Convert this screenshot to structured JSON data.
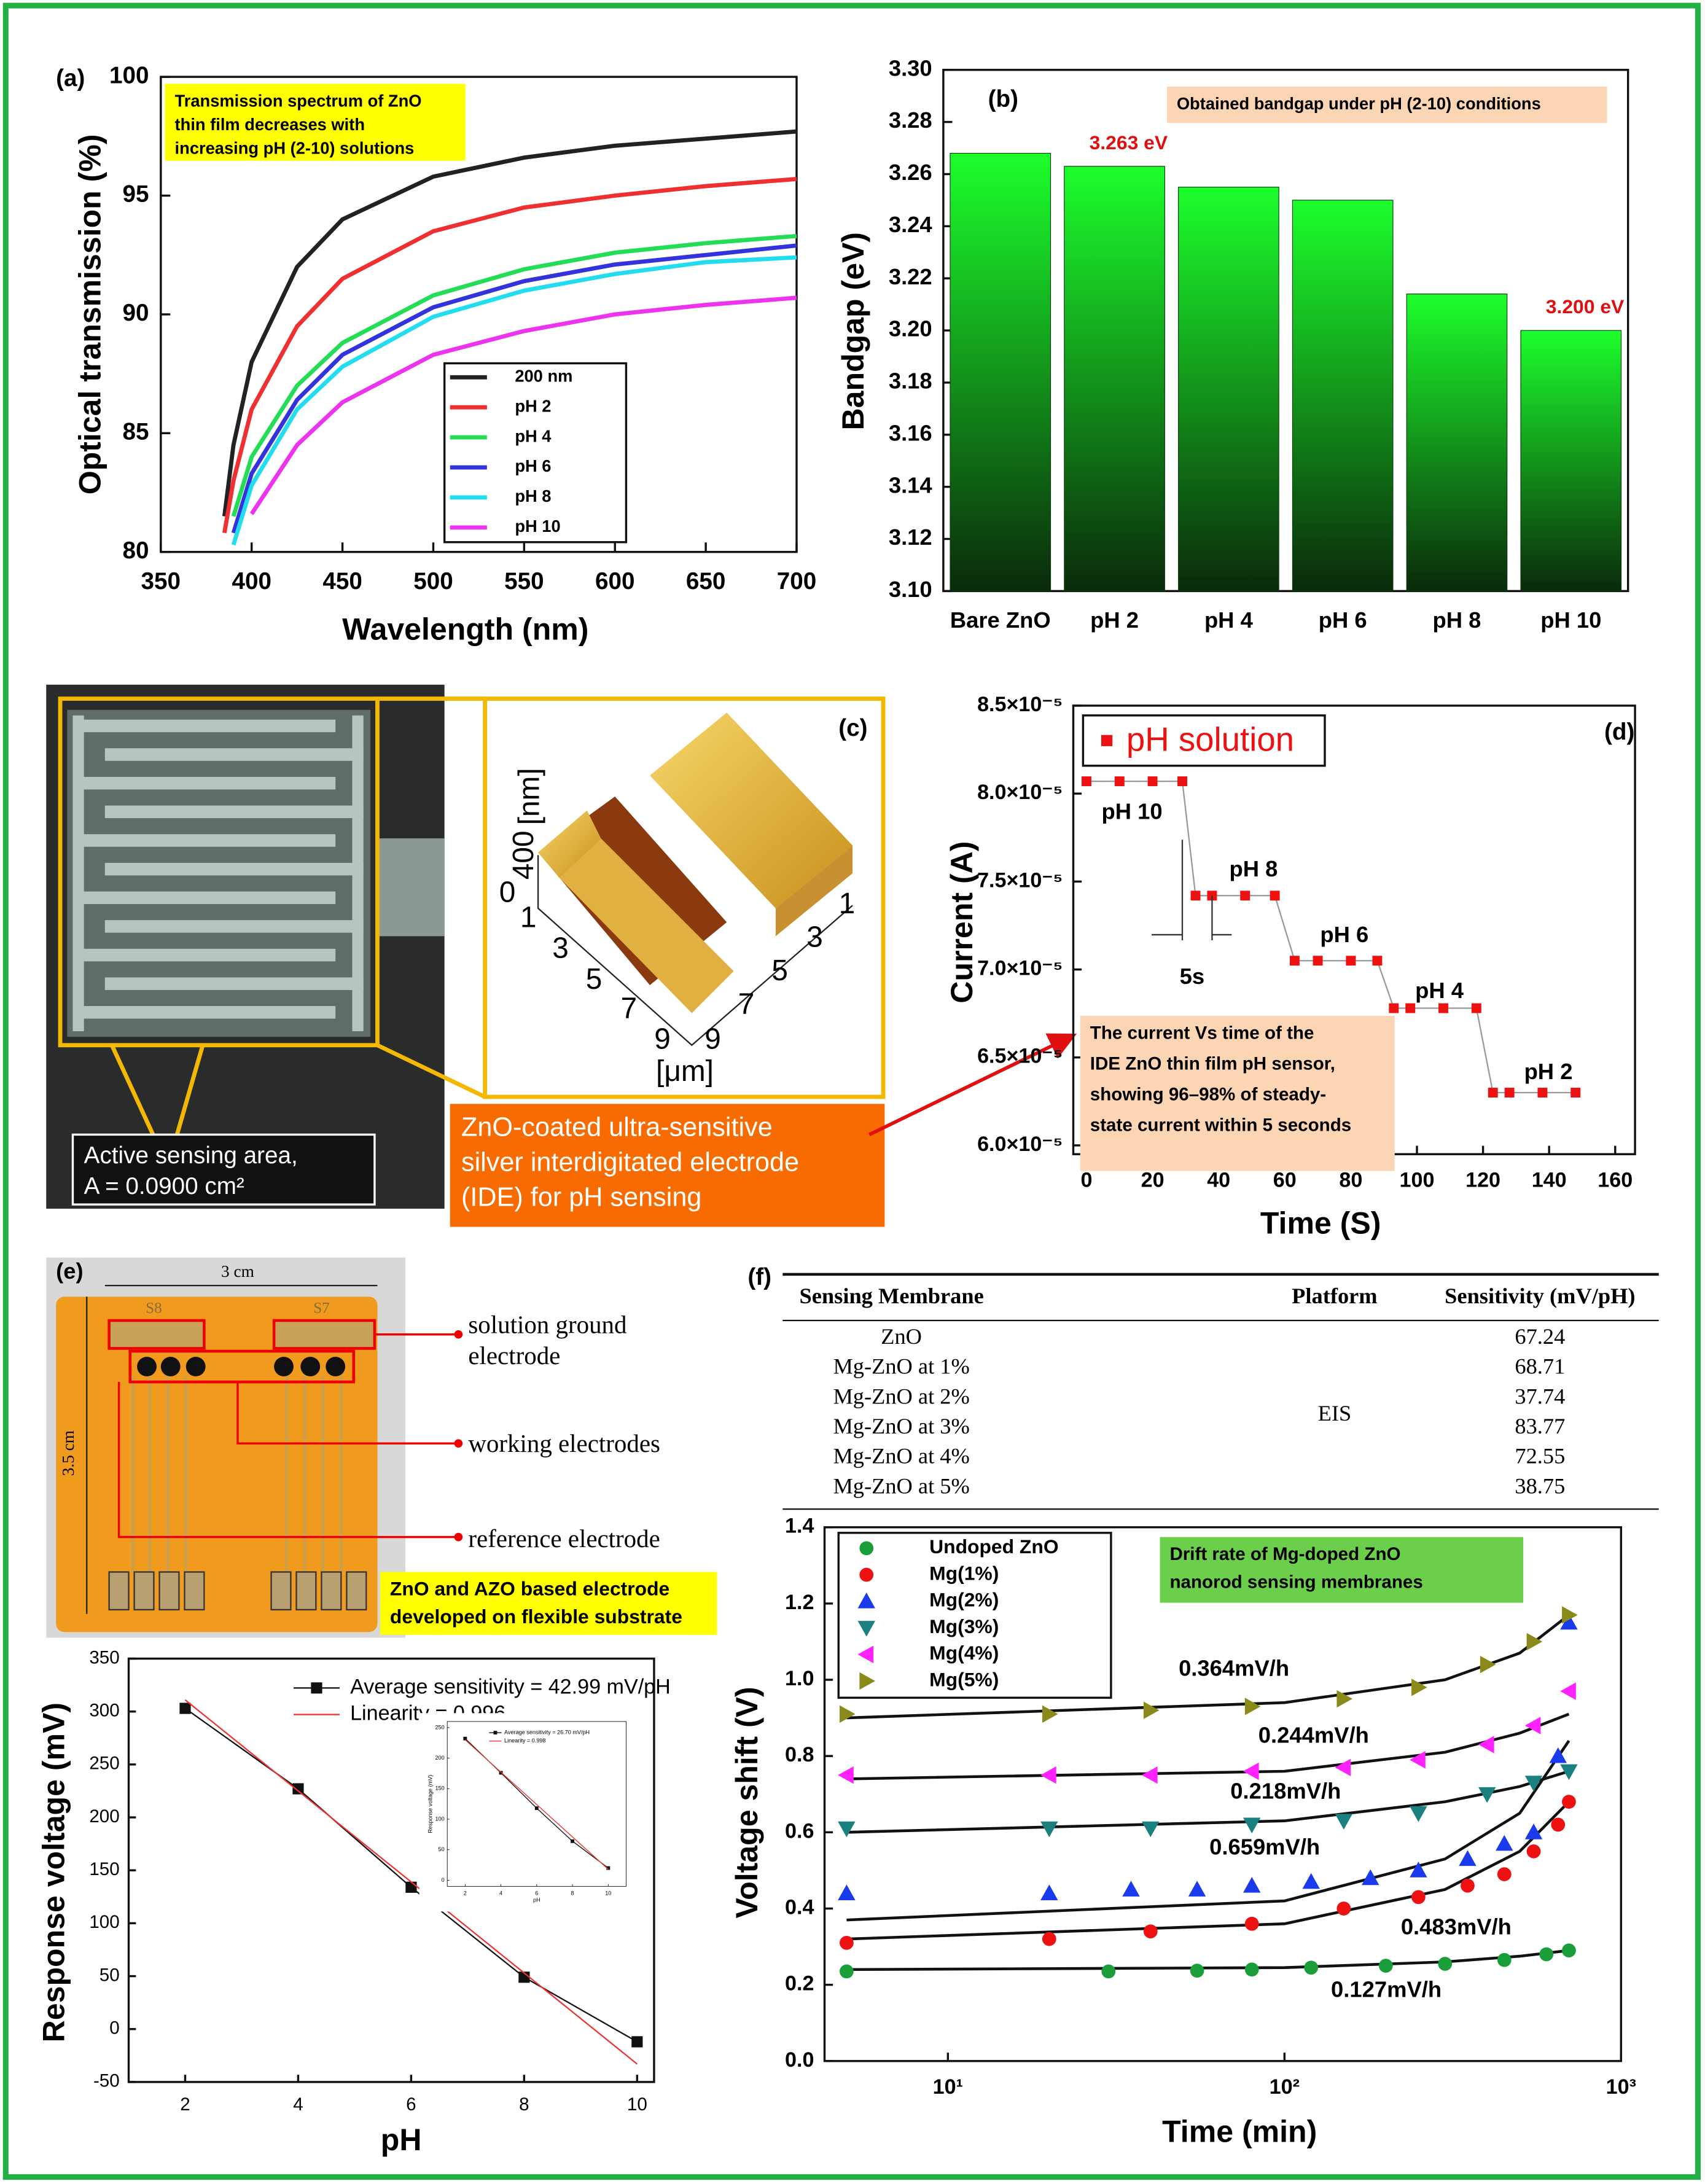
{
  "chart_data": [
    {
      "type": "line",
      "label": "(a)",
      "xlabel": "Wavelength (nm)",
      "ylabel": "Optical transmission (%)",
      "note": [
        "Transmission spectrum of ZnO",
        "thin film decreases with",
        "increasing pH (2-10) solutions"
      ],
      "xlim": [
        350,
        700
      ],
      "ylim": [
        80,
        100
      ],
      "xticks": [
        350,
        400,
        450,
        500,
        550,
        600,
        650,
        700
      ],
      "yticks": [
        80,
        85,
        90,
        95,
        100
      ],
      "legend": "lower right",
      "x": [
        385,
        390,
        400,
        425,
        450,
        500,
        550,
        600,
        650,
        700
      ],
      "series": [
        {
          "name": "200 nm",
          "color": "#222222",
          "values": [
            81.5,
            84.5,
            88,
            92,
            94,
            95.8,
            96.6,
            97.1,
            97.4,
            97.7
          ]
        },
        {
          "name": "pH 2",
          "color": "#f03030",
          "values": [
            80.8,
            83,
            86,
            89.5,
            91.5,
            93.5,
            94.5,
            95,
            95.4,
            95.7
          ]
        },
        {
          "name": "pH 4",
          "color": "#22dd55",
          "values": [
            null,
            81.5,
            84,
            87,
            88.8,
            90.8,
            91.9,
            92.6,
            93,
            93.3
          ]
        },
        {
          "name": "pH 6",
          "color": "#3333dd",
          "values": [
            null,
            80.8,
            83.3,
            86.4,
            88.3,
            90.3,
            91.4,
            92.1,
            92.5,
            92.9
          ]
        },
        {
          "name": "pH 8",
          "color": "#22ddee",
          "values": [
            null,
            80.3,
            82.8,
            86,
            87.8,
            89.9,
            91,
            91.7,
            92.2,
            92.4
          ]
        },
        {
          "name": "pH 10",
          "color": "#ee33ee",
          "values": [
            null,
            null,
            81.6,
            84.5,
            86.3,
            88.3,
            89.3,
            90,
            90.4,
            90.7
          ]
        }
      ]
    },
    {
      "type": "bar",
      "label": "(b)",
      "ylabel": "Bandgap (eV)",
      "note": [
        "Obtained bandgap under pH (2-10) conditions"
      ],
      "categories": [
        "Bare ZnO",
        "pH 2",
        "pH 4",
        "pH 6",
        "pH 8",
        "pH 10"
      ],
      "values": [
        3.268,
        3.263,
        3.255,
        3.25,
        3.214,
        3.2
      ],
      "value_labels": [
        null,
        "3.263 eV",
        null,
        null,
        null,
        "3.200 eV"
      ],
      "color": "#1cff2c",
      "color_bottom": "#0a2a0a",
      "label_color": "#dd1111",
      "ylim": [
        3.1,
        3.3
      ],
      "yticks": [
        {
          "value": 3.1,
          "label": "3.10"
        },
        3.12,
        3.14,
        3.16,
        3.18,
        {
          "value": 3.2,
          "label": "3.20"
        },
        3.22,
        3.24,
        3.26,
        3.28,
        {
          "value": 3.3,
          "label": "3.30"
        }
      ]
    },
    {
      "type": "line",
      "label": "(d)",
      "xlabel": "Time (S)",
      "ylabel": "Current (A)",
      "legend": "upper left",
      "note": [
        "The current Vs time of the",
        "IDE ZnO thin film pH sensor,",
        "showing 96–98% of steady-",
        "state current within 5 seconds"
      ],
      "annotations": [
        "pH 10",
        "pH 8",
        "pH 6",
        "pH 4",
        "pH 2",
        "5s"
      ],
      "xlim": [
        -4,
        166
      ],
      "ylim": [
        5.95e-05,
        8.5e-05
      ],
      "xticks": [
        0,
        20,
        40,
        60,
        80,
        100,
        120,
        140,
        160
      ],
      "yticks": [
        {
          "value": 6e-05,
          "label": "6.0×10⁻⁵"
        },
        {
          "value": 6.5e-05,
          "label": "6.5×10⁻⁵"
        },
        {
          "value": 7e-05,
          "label": "7.0×10⁻⁵"
        },
        {
          "value": 7.5e-05,
          "label": "7.5×10⁻⁵"
        },
        {
          "value": 8e-05,
          "label": "8.0×10⁻⁵"
        },
        {
          "value": 8.5e-05,
          "label": "8.5×10⁻⁵"
        }
      ],
      "series": [
        {
          "name": "pH solution",
          "color": "#ee1111",
          "line_color": "#999999",
          "marker": "square",
          "x": [
            0,
            10,
            20,
            29,
            33,
            38,
            48,
            57,
            63,
            70,
            80,
            88,
            93,
            98,
            108,
            118,
            123,
            128,
            138,
            148
          ],
          "values": [
            8.07e-05,
            8.07e-05,
            8.07e-05,
            8.07e-05,
            7.42e-05,
            7.42e-05,
            7.42e-05,
            7.42e-05,
            7.05e-05,
            7.05e-05,
            7.05e-05,
            7.05e-05,
            6.78e-05,
            6.78e-05,
            6.78e-05,
            6.78e-05,
            6.3e-05,
            6.3e-05,
            6.3e-05,
            6.3e-05
          ]
        }
      ]
    },
    {
      "type": "line",
      "xlabel": "pH",
      "ylabel": "Response voltage (mV)",
      "legend": "upper right",
      "xlim": [
        1,
        10.3
      ],
      "ylim": [
        -50,
        350
      ],
      "xticks": [
        2,
        4,
        6,
        8,
        10
      ],
      "yticks": [
        -50,
        0,
        50,
        100,
        150,
        200,
        250,
        300,
        350
      ],
      "series": [
        {
          "name": "Average sensitivity = 42.99 mV/pH",
          "color": "#111111",
          "marker": "square",
          "x": [
            2,
            4,
            6,
            8,
            10
          ],
          "values": [
            303,
            227,
            134,
            49,
            -12
          ]
        },
        {
          "name": "Linearity = 0.996",
          "color": "#ee3333",
          "x": [
            2,
            10
          ],
          "values": [
            311,
            -33
          ]
        }
      ]
    },
    {
      "type": "line",
      "xlabel": "pH",
      "ylabel": "Response voltage (mV)",
      "legend": "upper right",
      "xlim": [
        1,
        11
      ],
      "ylim": [
        -10,
        260
      ],
      "xticks": [
        2,
        4,
        6,
        8,
        10
      ],
      "yticks": [
        0,
        50,
        100,
        150,
        200,
        250
      ],
      "series": [
        {
          "name": "Average sensitivity = 26.70 mV/pH",
          "color": "#111111",
          "marker": "square",
          "x": [
            2,
            4,
            6,
            8,
            10
          ],
          "values": [
            232,
            176,
            118,
            64,
            20
          ]
        },
        {
          "name": "Linearity = 0.998",
          "color": "#ee3333",
          "x": [
            2,
            10
          ],
          "values": [
            230,
            18
          ]
        }
      ]
    },
    {
      "type": "scatter",
      "xlabel": "Time (min)",
      "ylabel": "Voltage shift (V)",
      "legend": "upper left",
      "xlog": true,
      "note": [
        "Drift  rate of Mg-doped ZnO",
        "nanorod sensing membranes"
      ],
      "annotations": [
        "0.364mV/h",
        "0.244mV/h",
        "0.218mV/h",
        "0.659mV/h",
        "0.483mV/h",
        "0.127mV/h"
      ],
      "xlim": [
        4.3,
        1000
      ],
      "ylim": [
        0,
        1.4
      ],
      "xticks": [
        {
          "value": 10,
          "label": "10¹"
        },
        {
          "value": 100,
          "label": "10²"
        },
        {
          "value": 1000,
          "label": "10³"
        }
      ],
      "yticks": [
        {
          "value": 0,
          "label": "0.0"
        },
        0.2,
        0.4,
        0.6,
        0.8,
        {
          "value": 1,
          "label": "1.0"
        },
        1.2,
        1.4
      ],
      "series": [
        {
          "name": "Undoped ZnO",
          "color": "#1a9e3a",
          "marker": "circle",
          "x": [
            5,
            30,
            55,
            80,
            120,
            200,
            300,
            450,
            600,
            700
          ],
          "values": [
            0.235,
            0.235,
            0.237,
            0.24,
            0.245,
            0.25,
            0.255,
            0.265,
            0.28,
            0.29
          ],
          "fit": {
            "x": [
              5,
              100,
              300,
              500,
              700
            ],
            "values": [
              0.24,
              0.245,
              0.26,
              0.275,
              0.29
            ]
          }
        },
        {
          "name": "Mg(1%)",
          "color": "#ee1111",
          "marker": "circle",
          "x": [
            5,
            20,
            40,
            80,
            150,
            250,
            350,
            450,
            550,
            650,
            700
          ],
          "values": [
            0.31,
            0.32,
            0.34,
            0.36,
            0.4,
            0.43,
            0.46,
            0.49,
            0.55,
            0.62,
            0.68
          ],
          "fit": {
            "x": [
              5,
              100,
              300,
              500,
              700
            ],
            "values": [
              0.32,
              0.36,
              0.45,
              0.55,
              0.68
            ]
          }
        },
        {
          "name": "Mg(2%)",
          "color": "#1a3aee",
          "marker": "triangle-up",
          "x": [
            5,
            20,
            35,
            55,
            80,
            120,
            180,
            250,
            350,
            450,
            550,
            650,
            700
          ],
          "values": [
            0.44,
            0.44,
            0.45,
            0.45,
            0.46,
            0.47,
            0.48,
            0.5,
            0.53,
            0.57,
            0.6,
            0.8,
            1.15
          ],
          "fit": {
            "x": [
              5,
              100,
              300,
              500,
              700
            ],
            "values": [
              0.37,
              0.42,
              0.53,
              0.65,
              0.84
            ]
          }
        },
        {
          "name": "Mg(3%)",
          "color": "#1a8080",
          "marker": "triangle-down",
          "x": [
            5,
            20,
            40,
            80,
            150,
            250,
            400,
            550,
            700
          ],
          "values": [
            0.61,
            0.61,
            0.61,
            0.62,
            0.63,
            0.65,
            0.7,
            0.73,
            0.76
          ],
          "fit": {
            "x": [
              5,
              100,
              300,
              500,
              700
            ],
            "values": [
              0.6,
              0.63,
              0.68,
              0.72,
              0.76
            ]
          }
        },
        {
          "name": "Mg(4%)",
          "color": "#ff22ff",
          "marker": "triangle-left",
          "x": [
            5,
            20,
            40,
            80,
            150,
            250,
            400,
            550,
            700
          ],
          "values": [
            0.75,
            0.75,
            0.75,
            0.76,
            0.77,
            0.79,
            0.83,
            0.88,
            0.97
          ],
          "fit": {
            "x": [
              5,
              100,
              300,
              500,
              700
            ],
            "values": [
              0.74,
              0.76,
              0.81,
              0.86,
              0.91
            ]
          }
        },
        {
          "name": "Mg(5%)",
          "color": "#8a8a1a",
          "marker": "triangle-right",
          "x": [
            5,
            20,
            40,
            80,
            150,
            250,
            400,
            550,
            700
          ],
          "values": [
            0.91,
            0.91,
            0.92,
            0.93,
            0.95,
            0.98,
            1.04,
            1.1,
            1.17
          ],
          "fit": {
            "x": [
              5,
              100,
              300,
              500,
              700
            ],
            "values": [
              0.9,
              0.94,
              1,
              1.07,
              1.17
            ]
          }
        }
      ]
    }
  ],
  "table": {
    "label": "(f)",
    "columns": [
      "Sensing Membrane",
      "Platform",
      "Sensitivity (mV/pH)"
    ],
    "platform": "EIS",
    "rows": [
      [
        "ZnO",
        "67.24"
      ],
      [
        "Mg-ZnO at 1%",
        "68.71"
      ],
      [
        "Mg-ZnO at 2%",
        "37.74"
      ],
      [
        "Mg-ZnO at 3%",
        "83.77"
      ],
      [
        "Mg-ZnO at 4%",
        "72.55"
      ],
      [
        "Mg-ZnO at 5%",
        "38.75"
      ]
    ]
  },
  "photo_c": {
    "label": "(c)",
    "area": [
      "Active sensing area,",
      "A = 0.0900 cm²"
    ],
    "caption": [
      "ZnO-coated ultra-sensitive",
      "silver interdigitated electrode",
      "(IDE) for pH sensing"
    ],
    "afm": {
      "z_unit": "[nm]",
      "z_ticks": [
        "0",
        "400"
      ],
      "x_ticks": [
        "1",
        "3",
        "5",
        "7",
        "9"
      ],
      "y_ticks": [
        "9",
        "7",
        "5",
        "3",
        "1"
      ],
      "unit": "[μm]"
    }
  },
  "photo_e": {
    "label": "(e)",
    "width": "3 cm",
    "height": "3.5 cm",
    "chips": [
      "S8",
      "S7"
    ],
    "callouts": [
      [
        "solution ground",
        "electrode"
      ],
      [
        "working electrodes"
      ],
      [
        "reference electrode"
      ]
    ],
    "note": [
      "ZnO and AZO based electrode",
      "developed on flexible substrate"
    ]
  }
}
